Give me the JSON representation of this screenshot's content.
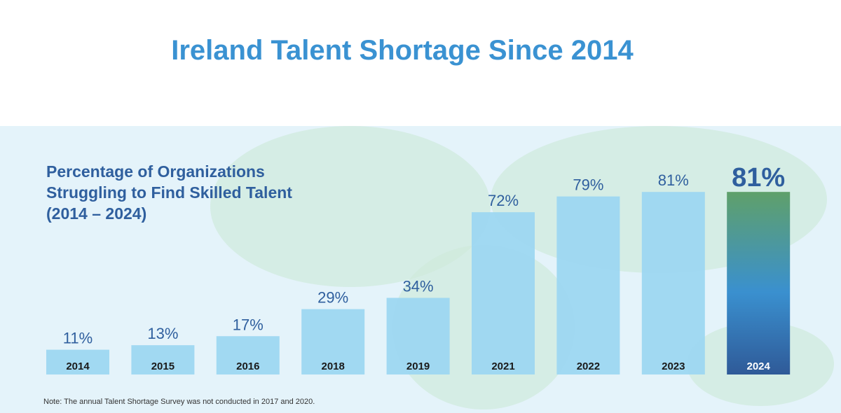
{
  "title": "Ireland Talent Shortage Since 2014",
  "subtitle": "Percentage of Organizations Struggling to Find Skilled Talent (2014 – 2024)",
  "note": "Note: The annual Talent Shortage Survey was not conducted in 2017 and 2020.",
  "chart_data": {
    "type": "bar",
    "title": "Percentage of Organizations Struggling to Find Skilled Talent (2014 – 2024)",
    "categories": [
      "2014",
      "2015",
      "2016",
      "2018",
      "2019",
      "2021",
      "2022",
      "2023",
      "2024"
    ],
    "values": [
      11,
      13,
      17,
      29,
      34,
      72,
      79,
      81,
      81
    ],
    "data_labels": [
      "11%",
      "13%",
      "17%",
      "29%",
      "34%",
      "72%",
      "79%",
      "81%",
      "81%"
    ],
    "ylim": [
      0,
      100
    ],
    "grid": false,
    "legend": "none",
    "highlight_category": "2024",
    "colors": {
      "bar": "#9dd7f1",
      "highlight_top": "#5fa06a",
      "highlight_mid": "#3a90cf",
      "highlight_bottom": "#2f5a98",
      "label": "#2f5f9e"
    }
  }
}
